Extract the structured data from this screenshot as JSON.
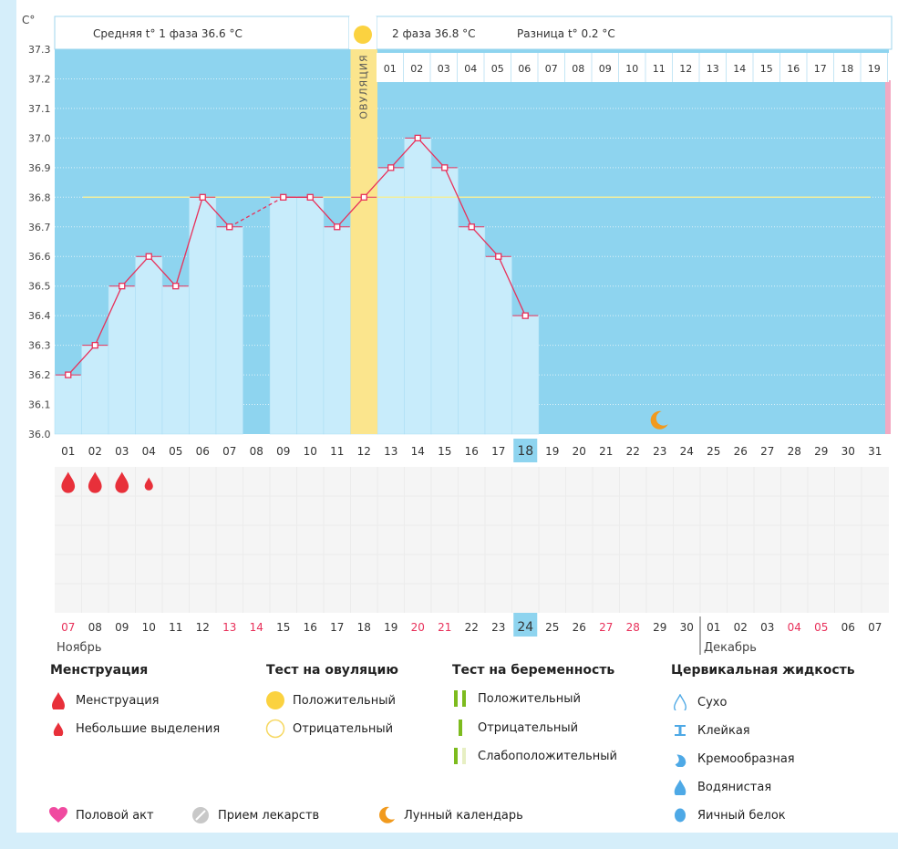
{
  "header": {
    "unit": "C°",
    "phase1": "Средняя t° 1 фаза 36.6 °C",
    "phase2": "2 фаза 36.8 °C",
    "difference": "Разница t° 0.2 °C",
    "ovulation_label": "ОВУЛЯЦИЯ"
  },
  "chart_data": {
    "type": "line",
    "title": "",
    "ylim": [
      36.0,
      37.3
    ],
    "yticks": [
      "37.3",
      "37.2",
      "37.1",
      "37.0",
      "36.9",
      "36.8",
      "36.7",
      "36.6",
      "36.5",
      "36.4",
      "36.3",
      "36.2",
      "36.1",
      "36.0"
    ],
    "x_days": [
      "01",
      "02",
      "03",
      "04",
      "05",
      "06",
      "07",
      "08",
      "09",
      "10",
      "11",
      "12",
      "13",
      "14",
      "15",
      "16",
      "17",
      "18",
      "19",
      "20",
      "21",
      "22",
      "23",
      "24",
      "25",
      "26",
      "27",
      "28",
      "29",
      "30",
      "31"
    ],
    "temperatures": [
      36.2,
      36.3,
      36.5,
      36.6,
      36.5,
      36.8,
      36.7,
      null,
      36.8,
      36.8,
      36.7,
      36.8,
      36.9,
      37.0,
      36.9,
      36.7,
      36.6,
      36.4
    ],
    "coverline": 36.8,
    "ovulation_day": 12,
    "current_day": "18",
    "phase2_days": [
      "01",
      "02",
      "03",
      "04",
      "05",
      "06",
      "07",
      "08",
      "09",
      "10",
      "11",
      "12",
      "13",
      "14",
      "15",
      "16",
      "17",
      "18",
      "19"
    ],
    "menstruation_days": [
      1,
      2,
      3
    ],
    "light_spotting_days": [
      4
    ],
    "moon_day": 23,
    "calendar_dates": [
      "07",
      "08",
      "09",
      "10",
      "11",
      "12",
      "13",
      "14",
      "15",
      "16",
      "17",
      "18",
      "19",
      "20",
      "21",
      "22",
      "23",
      "24",
      "25",
      "26",
      "27",
      "28",
      "29",
      "30",
      "01",
      "02",
      "03",
      "04",
      "05",
      "06",
      "07"
    ],
    "highlight_dates": [
      "07",
      "13",
      "14",
      "20",
      "21",
      "27",
      "28",
      "04",
      "05"
    ],
    "current_date": "24",
    "month1": "Ноябрь",
    "month2": "Декабрь"
  },
  "legend": {
    "menstruation": {
      "title": "Менструация",
      "items": [
        "Менструация",
        "Небольшие выделения"
      ]
    },
    "ovulation_test": {
      "title": "Тест на овуляцию",
      "items": [
        "Положительный",
        "Отрицательный"
      ]
    },
    "pregnancy_test": {
      "title": "Тест на беременность",
      "items": [
        "Положительный",
        "Отрицательный",
        "Слабоположительный"
      ]
    },
    "cervical_fluid": {
      "title": "Цервикальная жидкость",
      "items": [
        "Сухо",
        "Клейкая",
        "Кремообразная",
        "Водянистая",
        "Яичный белок"
      ]
    },
    "bottom": [
      "Половой акт",
      "Прием лекарств",
      "Лунный календарь"
    ]
  },
  "colors": {
    "plot_bg": "#8ed4ef",
    "bar": "#c8ecfb",
    "line": "#e8305a",
    "ovulation_band": "#fbe58d",
    "coverline": "#f1ee9e",
    "drop": "#e8303a",
    "moon": "#f19a1e",
    "heart": "#f04aa0",
    "green": "#7dbb1e",
    "blue_drop": "#4ea9e6"
  }
}
